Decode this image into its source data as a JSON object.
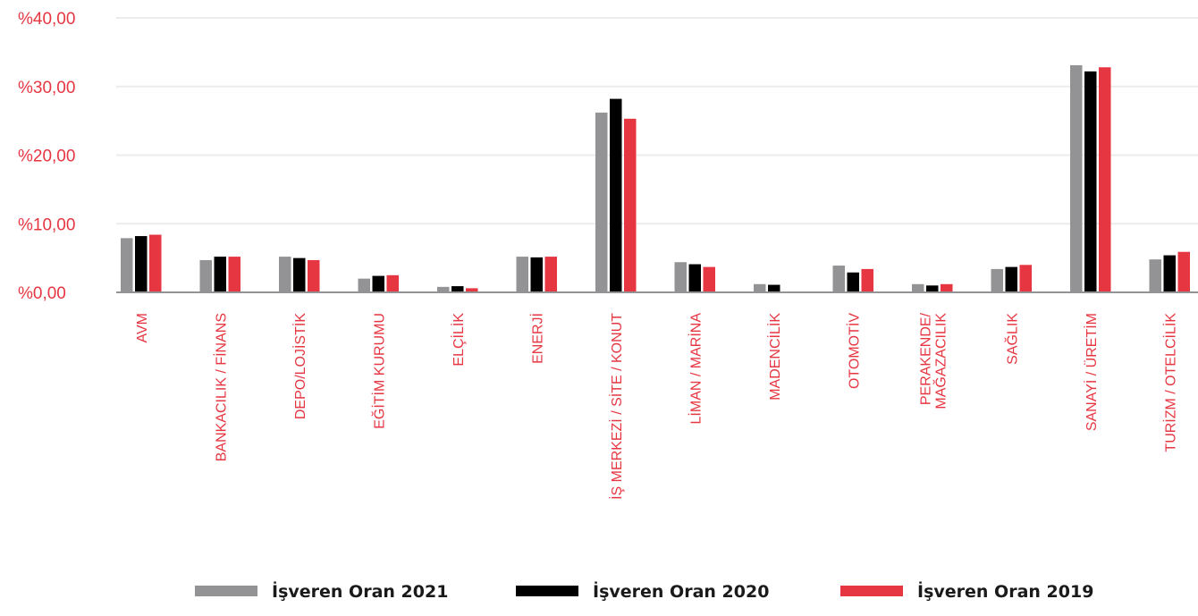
{
  "chart_data": {
    "type": "bar",
    "title": "",
    "xlabel": "",
    "ylabel": "",
    "ylim": [
      0,
      40
    ],
    "yticks": [
      {
        "value": 0,
        "label": "%0,00"
      },
      {
        "value": 10,
        "label": "%10,00"
      },
      {
        "value": 20,
        "label": "%20,00"
      },
      {
        "value": 30,
        "label": "%30,00"
      },
      {
        "value": 40,
        "label": "%40,00"
      }
    ],
    "categories": [
      [
        "AVM"
      ],
      [
        "BANKACILIK / FİNANS"
      ],
      [
        "DEPO/LOJİSTİK"
      ],
      [
        "EĞİTİM KURUMU"
      ],
      [
        "ELÇİLİK"
      ],
      [
        "ENERJİ"
      ],
      [
        "İŞ MERKEZİ / SİTE / KONUT"
      ],
      [
        "LİMAN / MARİNA"
      ],
      [
        "MADENCİLİK"
      ],
      [
        "OTOMOTİV"
      ],
      [
        "PERAKENDE/",
        "MAĞAZACILIK"
      ],
      [
        "SAĞLIK"
      ],
      [
        "SANAYİ / ÜRETİM"
      ],
      [
        "TURİZM / OTELCİLİK"
      ]
    ],
    "series": [
      {
        "name": "İşveren Oran 2021",
        "color": "#939396",
        "values": [
          7.9,
          4.7,
          5.2,
          2.0,
          0.8,
          5.2,
          26.2,
          4.4,
          1.2,
          3.9,
          1.2,
          3.4,
          33.1,
          4.8
        ]
      },
      {
        "name": "İşveren Oran 2020",
        "color": "#000000",
        "values": [
          8.2,
          5.2,
          5.0,
          2.4,
          0.9,
          5.1,
          28.2,
          4.1,
          1.1,
          2.9,
          1.0,
          3.7,
          32.2,
          5.4
        ]
      },
      {
        "name": "İşveren Oran 2019",
        "color": "#e63642",
        "values": [
          8.4,
          5.2,
          4.7,
          2.5,
          0.6,
          5.2,
          25.3,
          3.7,
          0.0,
          3.4,
          1.2,
          4.0,
          32.8,
          5.9
        ]
      }
    ],
    "grid": true,
    "legend": "bottom-center",
    "colors": {
      "axis": "#939396",
      "grid": "#ececec",
      "label": "#e63642"
    }
  }
}
